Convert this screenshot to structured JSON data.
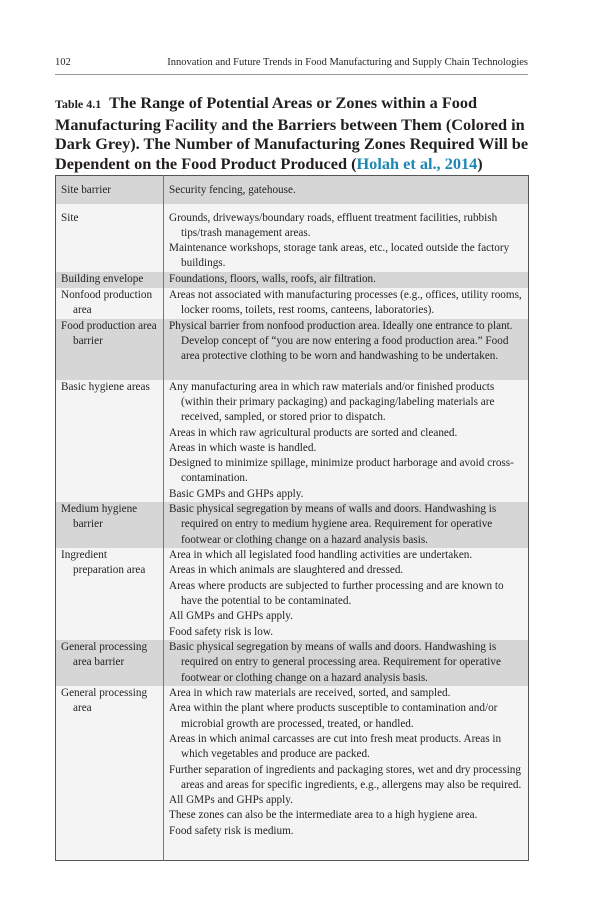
{
  "header": {
    "page_number": "102",
    "running_title": "Innovation and Future Trends in Food Manufacturing and Supply Chain Technologies"
  },
  "caption": {
    "label": "Table 4.1",
    "title": "The Range of Potential Areas or Zones within a Food Manufacturing Facility and the Barriers between Them (Colored in Dark Grey). The Number of Manufacturing Zones Required Will be Dependent on the Food Product Produced (",
    "citation": "Holah et al., 2014",
    "close": ")"
  },
  "rows": [
    {
      "zone": "Site barrier",
      "type": "barrier",
      "desc": [
        "Security fencing, gatehouse."
      ]
    },
    {
      "zone": "Site",
      "type": "area",
      "desc": [
        "Grounds, driveways/boundary roads, effluent treatment facilities, rubbish tips/trash management areas.",
        "Maintenance workshops, storage tank areas, etc., located outside the factory buildings."
      ]
    },
    {
      "zone": "Building envelope",
      "type": "barrier",
      "desc": [
        "Foundations, floors, walls, roofs, air filtration."
      ]
    },
    {
      "zone": "Nonfood production area",
      "type": "area",
      "desc": [
        "Areas not associated with manufacturing processes (e.g., offices, utility rooms, locker rooms, toilets, rest rooms, canteens, laboratories)."
      ]
    },
    {
      "zone": "Food production area barrier",
      "type": "barrier",
      "desc": [
        "Physical barrier from nonfood production area. Ideally one entrance to plant. Develop concept of “you are now entering a food production area.” Food area protective clothing to be worn and handwashing to be undertaken."
      ]
    },
    {
      "zone": "Basic hygiene areas",
      "type": "area",
      "desc": [
        "Any manufacturing area in which raw materials and/or finished products (within their primary packaging) and packaging/labeling materials are received, sampled, or stored prior to dispatch.",
        "Areas in which raw agricultural products are sorted and cleaned.",
        "Areas in which waste is handled.",
        "Designed to minimize spillage, minimize product harborage and avoid cross-contamination.",
        "Basic GMPs and GHPs apply."
      ]
    },
    {
      "zone": "Medium hygiene barrier",
      "type": "barrier",
      "desc": [
        "Basic physical segregation by means of walls and doors. Handwashing is required on entry to medium hygiene area. Requirement for operative footwear or clothing change on a hazard analysis basis."
      ]
    },
    {
      "zone": "Ingredient preparation area",
      "type": "area",
      "desc": [
        "Area in which all legislated food handling activities are undertaken.",
        "Areas in which animals are slaughtered and dressed.",
        "Areas where products are subjected to further processing and are known to have the potential to be contaminated.",
        "All GMPs and GHPs apply.",
        "Food safety risk is low."
      ]
    },
    {
      "zone": "General processing area barrier",
      "type": "barrier",
      "desc": [
        "Basic physical segregation by means of walls and doors. Handwashing is required on entry to general processing area. Requirement for operative footwear or clothing change on a hazard analysis basis."
      ]
    },
    {
      "zone": "General processing area",
      "type": "area",
      "desc": [
        "Area in which raw materials are received, sorted, and sampled.",
        "Area within the plant where products susceptible to contamination and/or microbial growth are processed, treated, or handled.",
        "Areas in which animal carcasses are cut into fresh meat products. Areas in which vegetables and produce are packed.",
        "Further separation of ingredients and packaging stores, wet and dry processing areas and areas for specific ingredients, e.g., allergens may also be required.",
        "All GMPs and GHPs apply.",
        "These zones can also be the intermediate area to a high hygiene area.",
        "Food safety risk is medium."
      ]
    }
  ]
}
